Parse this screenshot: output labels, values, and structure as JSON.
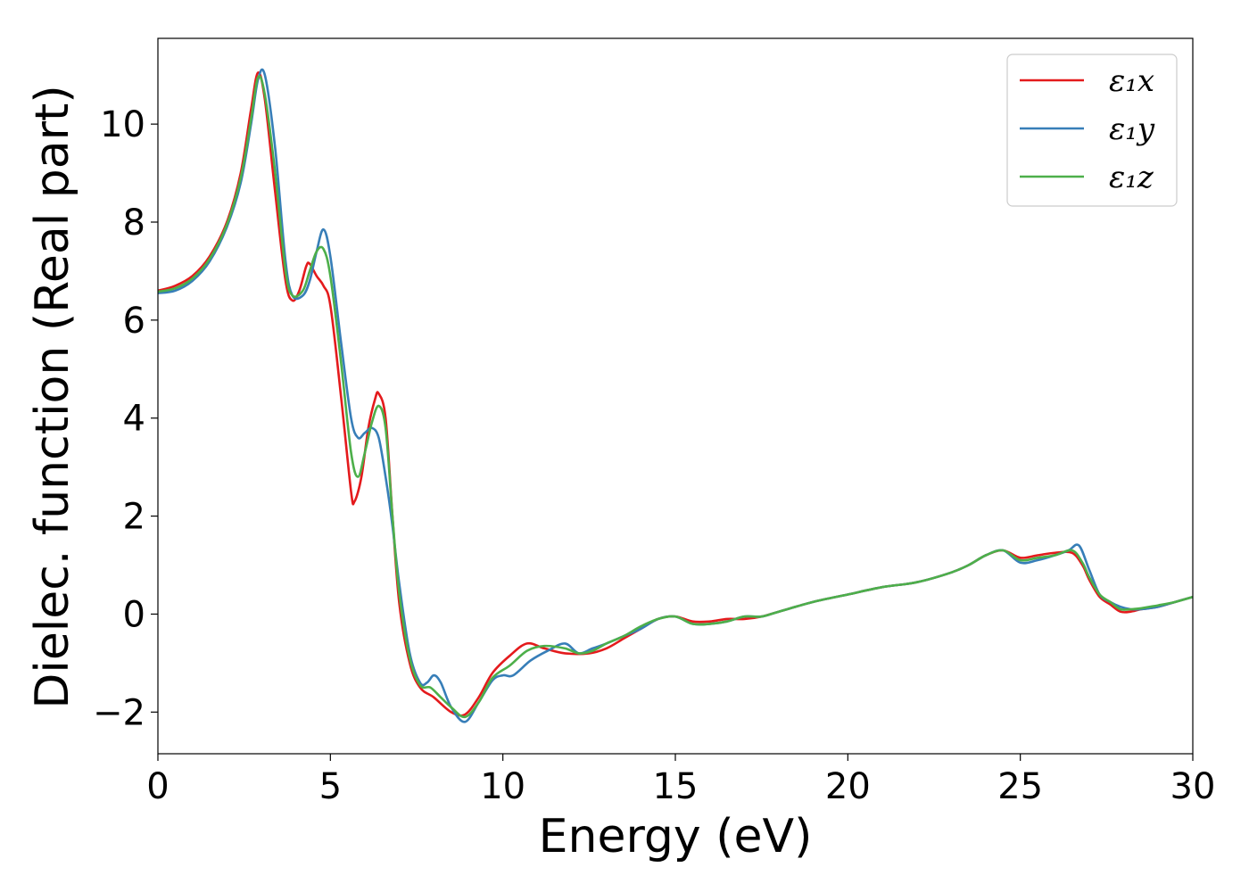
{
  "chart_data": {
    "type": "line",
    "title": "",
    "xlabel": "Energy (eV)",
    "ylabel": "Dielec. function (Real part)",
    "xlim": [
      0,
      30
    ],
    "ylim": [
      -2.85,
      11.75
    ],
    "xticks": [
      0,
      5,
      10,
      15,
      20,
      25,
      30
    ],
    "xtick_labels": [
      "0",
      "5",
      "10",
      "15",
      "20",
      "25",
      "30"
    ],
    "yticks": [
      -2,
      0,
      2,
      4,
      6,
      8,
      10
    ],
    "ytick_labels": [
      "−2",
      "0",
      "2",
      "4",
      "6",
      "8",
      "10"
    ],
    "grid": false,
    "legend_position": "top-right",
    "series": [
      {
        "name": "ε₁x",
        "color": "#e41a1c",
        "x": [
          0,
          0.5,
          1.0,
          1.5,
          2.0,
          2.4,
          2.7,
          2.9,
          3.1,
          3.4,
          3.7,
          3.9,
          4.1,
          4.3,
          4.4,
          4.6,
          4.8,
          5.0,
          5.3,
          5.6,
          5.7,
          5.9,
          6.1,
          6.3,
          6.4,
          6.6,
          6.8,
          7.0,
          7.3,
          7.6,
          8.0,
          8.5,
          8.9,
          9.3,
          9.7,
          10.2,
          10.7,
          11.2,
          11.8,
          12.5,
          13.0,
          13.5,
          14.0,
          14.5,
          15.0,
          15.5,
          16.0,
          16.5,
          17.0,
          17.5,
          18.0,
          19.0,
          20.0,
          21.0,
          22.0,
          23.0,
          23.5,
          24.0,
          24.5,
          25.0,
          25.5,
          26.0,
          26.5,
          26.8,
          27.0,
          27.3,
          27.6,
          27.9,
          28.2,
          28.5,
          29.0,
          29.5,
          30.0
        ],
        "values": [
          6.6,
          6.7,
          6.9,
          7.3,
          8.0,
          9.0,
          10.3,
          11.05,
          10.5,
          8.6,
          6.8,
          6.4,
          6.6,
          7.1,
          7.15,
          6.9,
          6.7,
          6.3,
          4.5,
          2.5,
          2.3,
          2.8,
          3.8,
          4.4,
          4.5,
          4.0,
          2.0,
          0.2,
          -1.0,
          -1.5,
          -1.7,
          -2.0,
          -2.05,
          -1.7,
          -1.2,
          -0.85,
          -0.6,
          -0.7,
          -0.8,
          -0.8,
          -0.7,
          -0.5,
          -0.3,
          -0.1,
          -0.05,
          -0.15,
          -0.15,
          -0.1,
          -0.1,
          -0.05,
          0.05,
          0.25,
          0.4,
          0.55,
          0.65,
          0.85,
          1.0,
          1.2,
          1.3,
          1.15,
          1.2,
          1.25,
          1.25,
          1.0,
          0.7,
          0.35,
          0.2,
          0.05,
          0.05,
          0.1,
          0.15,
          0.25,
          0.35
        ]
      },
      {
        "name": "ε₁y",
        "color": "#377eb8",
        "x": [
          0,
          0.5,
          1.0,
          1.5,
          2.0,
          2.4,
          2.7,
          2.9,
          3.1,
          3.4,
          3.7,
          3.9,
          4.2,
          4.4,
          4.6,
          4.8,
          5.0,
          5.3,
          5.6,
          5.8,
          6.0,
          6.2,
          6.4,
          6.6,
          6.8,
          7.0,
          7.3,
          7.6,
          7.8,
          8.0,
          8.2,
          8.5,
          8.9,
          9.3,
          9.7,
          10.0,
          10.3,
          10.8,
          11.3,
          11.8,
          12.2,
          12.6,
          13.0,
          13.5,
          14.0,
          14.5,
          15.0,
          15.5,
          16.0,
          16.5,
          17.0,
          17.5,
          18.0,
          19.0,
          20.0,
          21.0,
          22.0,
          23.0,
          23.5,
          24.0,
          24.5,
          25.0,
          25.5,
          26.0,
          26.4,
          26.7,
          27.0,
          27.3,
          27.6,
          27.9,
          28.2,
          28.5,
          29.0,
          29.5,
          30.0
        ],
        "values": [
          6.55,
          6.6,
          6.8,
          7.2,
          7.9,
          8.8,
          10.0,
          10.9,
          11.0,
          9.5,
          7.2,
          6.5,
          6.5,
          6.8,
          7.4,
          7.85,
          7.3,
          5.6,
          4.0,
          3.6,
          3.7,
          3.8,
          3.6,
          2.8,
          1.8,
          0.6,
          -0.8,
          -1.4,
          -1.4,
          -1.25,
          -1.4,
          -1.9,
          -2.2,
          -1.8,
          -1.35,
          -1.25,
          -1.25,
          -0.95,
          -0.75,
          -0.6,
          -0.8,
          -0.7,
          -0.6,
          -0.45,
          -0.3,
          -0.1,
          -0.05,
          -0.2,
          -0.2,
          -0.15,
          -0.05,
          -0.05,
          0.05,
          0.25,
          0.4,
          0.55,
          0.65,
          0.85,
          1.0,
          1.2,
          1.3,
          1.05,
          1.1,
          1.2,
          1.3,
          1.4,
          0.9,
          0.4,
          0.25,
          0.15,
          0.1,
          0.1,
          0.15,
          0.25,
          0.35
        ]
      },
      {
        "name": "ε₁z",
        "color": "#4daf4a",
        "x": [
          0,
          0.5,
          1.0,
          1.5,
          2.0,
          2.4,
          2.7,
          2.9,
          3.1,
          3.4,
          3.7,
          3.9,
          4.2,
          4.4,
          4.6,
          4.8,
          5.0,
          5.3,
          5.6,
          5.8,
          6.0,
          6.2,
          6.4,
          6.6,
          6.8,
          7.0,
          7.3,
          7.6,
          7.9,
          8.2,
          8.5,
          8.9,
          9.3,
          9.7,
          10.2,
          10.7,
          11.2,
          11.8,
          12.2,
          12.6,
          13.0,
          13.5,
          14.0,
          14.5,
          15.0,
          15.5,
          16.0,
          16.5,
          17.0,
          17.5,
          18.0,
          19.0,
          20.0,
          21.0,
          22.0,
          23.0,
          23.5,
          24.0,
          24.5,
          25.0,
          25.5,
          26.0,
          26.5,
          26.8,
          27.0,
          27.3,
          27.6,
          27.9,
          28.2,
          28.5,
          29.0,
          29.5,
          30.0
        ],
        "values": [
          6.58,
          6.65,
          6.85,
          7.25,
          7.95,
          8.9,
          10.1,
          10.95,
          10.6,
          9.0,
          7.0,
          6.5,
          6.6,
          7.0,
          7.4,
          7.45,
          6.9,
          5.2,
          3.3,
          2.8,
          3.3,
          3.9,
          4.25,
          3.8,
          2.0,
          0.4,
          -0.9,
          -1.45,
          -1.5,
          -1.7,
          -1.9,
          -2.1,
          -1.8,
          -1.3,
          -1.05,
          -0.75,
          -0.65,
          -0.7,
          -0.8,
          -0.75,
          -0.6,
          -0.45,
          -0.25,
          -0.1,
          -0.05,
          -0.2,
          -0.2,
          -0.15,
          -0.05,
          -0.05,
          0.05,
          0.25,
          0.4,
          0.55,
          0.65,
          0.85,
          1.0,
          1.2,
          1.3,
          1.1,
          1.15,
          1.2,
          1.3,
          1.05,
          0.75,
          0.4,
          0.25,
          0.1,
          0.1,
          0.12,
          0.18,
          0.25,
          0.35
        ]
      }
    ]
  }
}
